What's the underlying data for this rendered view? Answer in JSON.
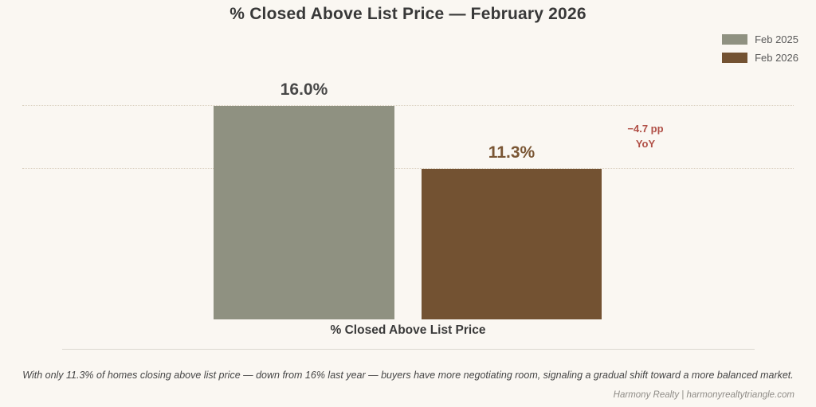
{
  "page": {
    "background": "#faf7f2"
  },
  "chart_data": {
    "type": "bar",
    "title": "% Closed Above List Price — February 2026",
    "categories": [
      "Feb 2025",
      "Feb 2026"
    ],
    "values": [
      16.0,
      11.3
    ],
    "value_labels": [
      "16.0%",
      "11.3%"
    ],
    "value_label_colors": [
      "#474747",
      "#7a5634"
    ],
    "colors": [
      "#8f9181",
      "#735232"
    ],
    "xlabel": "% Closed Above List Price",
    "ylabel": "",
    "ylim": [
      0,
      19
    ],
    "grid": "dotted horizontal leader lines at each bar's value",
    "legend_position": "top-right",
    "annotation": {
      "line1": "−4.7 pp",
      "line2": "YoY",
      "color": "#b04f46"
    }
  },
  "legend": {
    "items": [
      {
        "label": "Feb 2025",
        "color": "#8f9181"
      },
      {
        "label": "Feb 2026",
        "color": "#735232"
      }
    ]
  },
  "footer": {
    "note": "With only 11.3% of homes closing above list price — down from 16% last year — buyers have more negotiating room, signaling a gradual shift toward a more balanced market.",
    "credit": "Harmony Realty  |  harmonyrealtytriangle.com"
  }
}
